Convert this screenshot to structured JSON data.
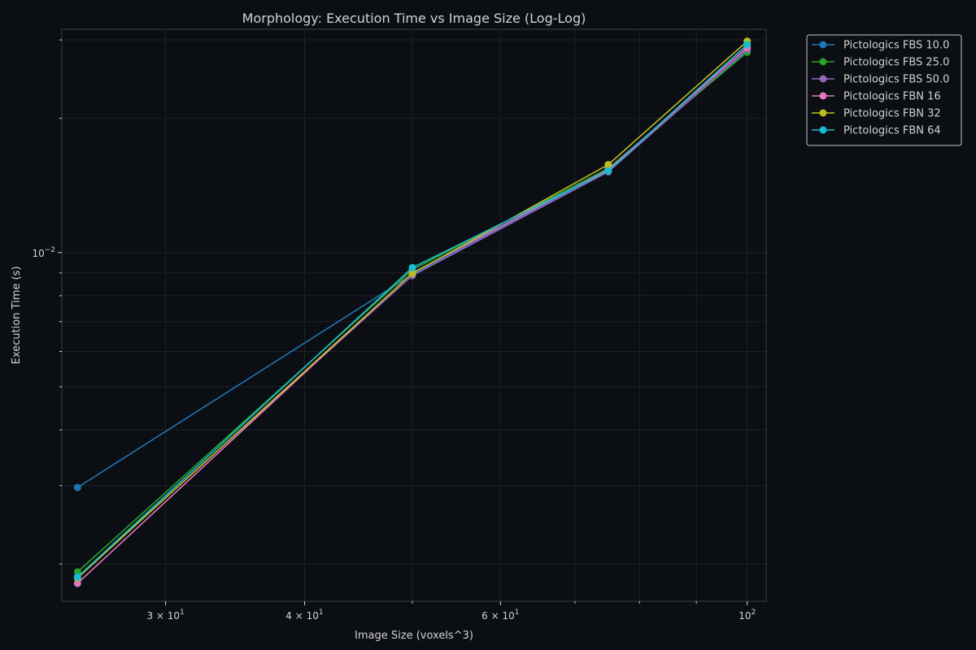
{
  "chart_data": {
    "type": "line",
    "title": "Morphology: Execution Time vs Image Size (Log-Log)",
    "xlabel": "Image Size (voxels^3)",
    "ylabel": "Execution Time (s)",
    "x_scale": "log",
    "y_scale": "log",
    "xlim": [
      24.2,
      104
    ],
    "ylim": [
      0.00165,
      0.0317
    ],
    "grid": true,
    "legend_position": "outside-top-right",
    "x_ticks": [
      {
        "value": 30,
        "base": "3 × 10",
        "exp": "1"
      },
      {
        "value": 40,
        "base": "4 × 10",
        "exp": "1"
      },
      {
        "value": 60,
        "base": "6 × 10",
        "exp": "1"
      },
      {
        "value": 100,
        "base": "10",
        "exp": "2"
      }
    ],
    "x_minor_ticks": [
      50,
      70,
      80,
      90
    ],
    "y_ticks": [
      {
        "value": 0.01,
        "base": "10",
        "exp": "−2"
      }
    ],
    "y_minor_ticks": [
      0.002,
      0.003,
      0.004,
      0.005,
      0.006,
      0.007,
      0.008,
      0.009,
      0.02,
      0.03
    ],
    "x": [
      25,
      50,
      75,
      100
    ],
    "series": [
      {
        "name": "Pictologics FBS 10.0",
        "color": "#1f77b4",
        "values": [
          0.00297,
          0.00893,
          0.01526,
          0.0284
        ]
      },
      {
        "name": "Pictologics FBS 25.0",
        "color": "#2ca02c",
        "values": [
          0.00192,
          0.00915,
          0.01545,
          0.02815
        ]
      },
      {
        "name": "Pictologics FBS 50.0",
        "color": "#9467bd",
        "values": [
          0.00187,
          0.00888,
          0.01518,
          0.0286
        ]
      },
      {
        "name": "Pictologics FBN 16",
        "color": "#e377c2",
        "values": [
          0.00181,
          0.009,
          0.01535,
          0.0289
        ]
      },
      {
        "name": "Pictologics FBN 32",
        "color": "#bcbd22",
        "values": [
          0.00186,
          0.00898,
          0.01575,
          0.0298
        ]
      },
      {
        "name": "Pictologics FBN 64",
        "color": "#17becf",
        "values": [
          0.00187,
          0.00925,
          0.01525,
          0.0293
        ]
      }
    ]
  },
  "colors": {
    "background": "#0b0e13",
    "axes_border": "#3a3f47",
    "grid": "#1e232b",
    "text": "#d2d2d2"
  }
}
